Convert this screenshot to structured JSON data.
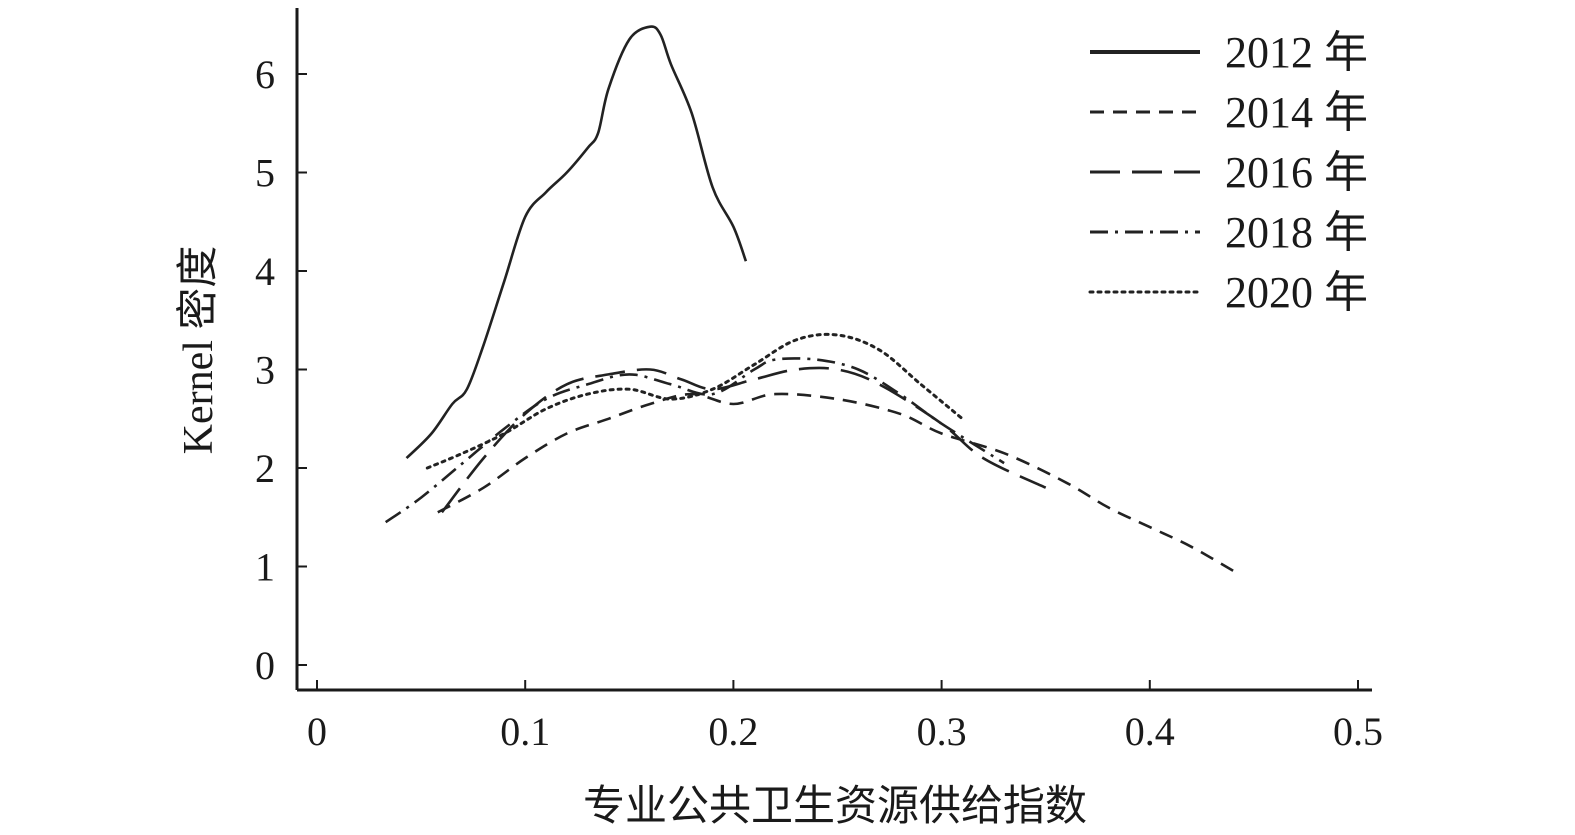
{
  "chart_data": {
    "type": "line",
    "xlabel": "专业公共卫生资源供给指数",
    "ylabel": "Kernel 密度",
    "xlim": [
      0,
      0.5
    ],
    "ylim": [
      0,
      6.5
    ],
    "xticks": [
      0,
      0.1,
      0.2,
      0.3,
      0.4,
      0.5
    ],
    "xtick_labels": [
      "0",
      "0.1",
      "0.2",
      "0.3",
      "0.4",
      "0.5"
    ],
    "yticks": [
      0,
      1,
      2,
      3,
      4,
      5,
      6
    ],
    "ytick_labels": [
      "0",
      "1",
      "2",
      "3",
      "4",
      "5",
      "6"
    ],
    "grid": false,
    "legend_position": "top-right",
    "series": [
      {
        "name": "2012 年",
        "style": "solid",
        "color": "#222222",
        "x": [
          0.043,
          0.055,
          0.065,
          0.072,
          0.08,
          0.09,
          0.1,
          0.11,
          0.12,
          0.13,
          0.135,
          0.14,
          0.15,
          0.16,
          0.165,
          0.17,
          0.18,
          0.19,
          0.2,
          0.206
        ],
        "y": [
          2.1,
          2.35,
          2.65,
          2.8,
          3.25,
          3.9,
          4.55,
          4.8,
          5.0,
          5.25,
          5.4,
          5.85,
          6.35,
          6.48,
          6.4,
          6.1,
          5.6,
          4.85,
          4.45,
          4.1
        ]
      },
      {
        "name": "2014 年",
        "style": "short-dash",
        "color": "#222222",
        "x": [
          0.058,
          0.08,
          0.1,
          0.12,
          0.14,
          0.16,
          0.18,
          0.2,
          0.22,
          0.25,
          0.28,
          0.3,
          0.33,
          0.36,
          0.38,
          0.4,
          0.42,
          0.443
        ],
        "y": [
          1.55,
          1.8,
          2.1,
          2.35,
          2.5,
          2.65,
          2.75,
          2.65,
          2.75,
          2.7,
          2.55,
          2.35,
          2.15,
          1.85,
          1.6,
          1.4,
          1.2,
          0.92
        ]
      },
      {
        "name": "2016 年",
        "style": "long-dash",
        "color": "#222222",
        "x": [
          0.06,
          0.08,
          0.1,
          0.12,
          0.14,
          0.16,
          0.175,
          0.19,
          0.21,
          0.23,
          0.25,
          0.27,
          0.3,
          0.32,
          0.35
        ],
        "y": [
          1.55,
          2.1,
          2.55,
          2.85,
          2.95,
          3.0,
          2.9,
          2.8,
          2.9,
          3.0,
          3.0,
          2.85,
          2.45,
          2.1,
          1.8
        ]
      },
      {
        "name": "2018 年",
        "style": "dash-dot",
        "color": "#222222",
        "x": [
          0.033,
          0.05,
          0.07,
          0.09,
          0.11,
          0.13,
          0.15,
          0.17,
          0.19,
          0.21,
          0.22,
          0.24,
          0.26,
          0.28,
          0.3,
          0.33
        ],
        "y": [
          1.45,
          1.7,
          2.05,
          2.4,
          2.7,
          2.85,
          2.95,
          2.85,
          2.75,
          3.0,
          3.1,
          3.1,
          3.0,
          2.75,
          2.45,
          2.05
        ]
      },
      {
        "name": "2020 年",
        "style": "dotted",
        "color": "#222222",
        "x": [
          0.053,
          0.07,
          0.09,
          0.11,
          0.13,
          0.15,
          0.17,
          0.19,
          0.21,
          0.23,
          0.25,
          0.27,
          0.29,
          0.31
        ],
        "y": [
          2.0,
          2.15,
          2.35,
          2.6,
          2.75,
          2.8,
          2.7,
          2.8,
          3.05,
          3.3,
          3.35,
          3.2,
          2.85,
          2.5
        ]
      }
    ]
  }
}
